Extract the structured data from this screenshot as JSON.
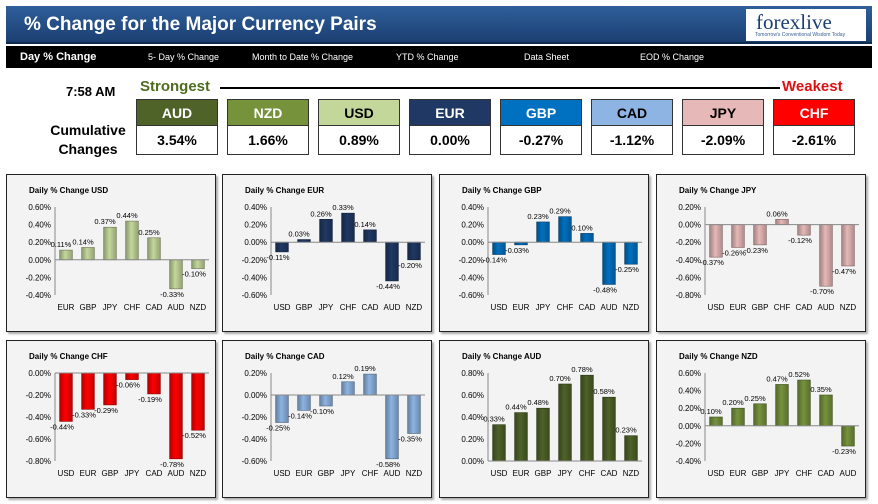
{
  "header": {
    "title": "% Change for the Major Currency Pairs",
    "logo_text": "forexlive",
    "logo_tagline": "Tomorrow's Conventional Wisdom Today"
  },
  "nav": [
    "Day % Change",
    "5- Day % Change",
    "Month to Date % Change",
    "YTD % Change",
    "Data Sheet",
    "EOD % Change"
  ],
  "time": "7:58 AM",
  "strongest_label": "Strongest",
  "weakest_label": "Weakest",
  "cumulative_label": "Cumulative Changes",
  "tiles": [
    {
      "ccy": "AUD",
      "value": "3.54%",
      "head_bg": "#4f6228",
      "head_fg": "#ffffff"
    },
    {
      "ccy": "NZD",
      "value": "1.66%",
      "head_bg": "#76933c",
      "head_fg": "#ffffff"
    },
    {
      "ccy": "USD",
      "value": "0.89%",
      "head_bg": "#c4d79b",
      "head_fg": "#000000"
    },
    {
      "ccy": "EUR",
      "value": "0.00%",
      "head_bg": "#1f3864",
      "head_fg": "#ffffff"
    },
    {
      "ccy": "GBP",
      "value": "-0.27%",
      "head_bg": "#0070c0",
      "head_fg": "#ffffff"
    },
    {
      "ccy": "CAD",
      "value": "-1.12%",
      "head_bg": "#8db4e2",
      "head_fg": "#000000"
    },
    {
      "ccy": "JPY",
      "value": "-2.09%",
      "head_bg": "#e6b8b7",
      "head_fg": "#000000"
    },
    {
      "ccy": "CHF",
      "value": "-2.61%",
      "head_bg": "#ff0000",
      "head_fg": "#ffffff"
    }
  ],
  "chart_data": [
    {
      "type": "bar",
      "title": "Daily % Change USD",
      "color": "#c4d79b",
      "categories": [
        "EUR",
        "GBP",
        "JPY",
        "CHF",
        "CAD",
        "AUD",
        "NZD"
      ],
      "values": [
        0.11,
        0.14,
        0.37,
        0.44,
        0.25,
        -0.33,
        -0.1
      ],
      "labels": [
        "0.11%",
        "0.14%",
        "0.37%",
        "0.44%",
        "0.25%",
        "-0.33%",
        "-0.10%"
      ],
      "yticks": [
        "0.60%",
        "0.40%",
        "0.20%",
        "0.00%",
        "-0.20%",
        "-0.40%"
      ],
      "ylim": [
        -0.4,
        0.6
      ]
    },
    {
      "type": "bar",
      "title": "Daily % Change EUR",
      "color": "#1f3864",
      "categories": [
        "USD",
        "GBP",
        "JPY",
        "CHF",
        "CAD",
        "AUD",
        "NZD"
      ],
      "values": [
        -0.11,
        0.03,
        0.26,
        0.33,
        0.14,
        -0.44,
        -0.2
      ],
      "labels": [
        "-0.11%",
        "0.03%",
        "0.26%",
        "0.33%",
        "0.14%",
        "-0.44%",
        "-0.20%"
      ],
      "yticks": [
        "0.40%",
        "0.20%",
        "0.00%",
        "-0.20%",
        "-0.40%",
        "-0.60%"
      ],
      "ylim": [
        -0.6,
        0.4
      ]
    },
    {
      "type": "bar",
      "title": "Daily % Change GBP",
      "color": "#0070c0",
      "categories": [
        "USD",
        "EUR",
        "JPY",
        "CHF",
        "CAD",
        "AUD",
        "NZD"
      ],
      "values": [
        -0.14,
        -0.03,
        0.23,
        0.29,
        0.1,
        -0.48,
        -0.25
      ],
      "labels": [
        "-0.14%",
        "-0.03%",
        "0.23%",
        "0.29%",
        "0.10%",
        "-0.48%",
        "-0.25%"
      ],
      "yticks": [
        "0.40%",
        "0.20%",
        "0.00%",
        "-0.20%",
        "-0.40%",
        "-0.60%"
      ],
      "ylim": [
        -0.6,
        0.4
      ]
    },
    {
      "type": "bar",
      "title": "Daily % Change JPY",
      "color": "#e6b8b7",
      "categories": [
        "USD",
        "EUR",
        "GBP",
        "CHF",
        "CAD",
        "AUD",
        "NZD"
      ],
      "values": [
        -0.37,
        -0.26,
        -0.23,
        0.06,
        -0.12,
        -0.7,
        -0.47
      ],
      "labels": [
        "-0.37%",
        "-0.26%",
        "-0.23%",
        "0.06%",
        "-0.12%",
        "-0.70%",
        "-0.47%"
      ],
      "yticks": [
        "0.20%",
        "0.00%",
        "-0.20%",
        "-0.40%",
        "-0.60%",
        "-0.80%"
      ],
      "ylim": [
        -0.8,
        0.2
      ]
    },
    {
      "type": "bar",
      "title": "Daily % Change CHF",
      "color": "#ff0000",
      "categories": [
        "USD",
        "EUR",
        "GBP",
        "JPY",
        "CAD",
        "AUD",
        "NZD"
      ],
      "values": [
        -0.44,
        -0.33,
        -0.29,
        -0.06,
        -0.19,
        -0.78,
        -0.52
      ],
      "labels": [
        "-0.44%",
        "-0.33%",
        "-0.29%",
        "-0.06%",
        "-0.19%",
        "-0.78%",
        "-0.52%"
      ],
      "yticks": [
        "0.00%",
        "-0.20%",
        "-0.40%",
        "-0.60%",
        "-0.80%"
      ],
      "ylim": [
        -0.8,
        0.0
      ]
    },
    {
      "type": "bar",
      "title": "Daily % Change CAD",
      "color": "#8db4e2",
      "categories": [
        "USD",
        "EUR",
        "GBP",
        "JPY",
        "CHF",
        "AUD",
        "NZD"
      ],
      "values": [
        -0.25,
        -0.14,
        -0.1,
        0.12,
        0.19,
        -0.58,
        -0.35
      ],
      "labels": [
        "-0.25%",
        "-0.14%",
        "-0.10%",
        "0.12%",
        "0.19%",
        "-0.58%",
        "-0.35%"
      ],
      "yticks": [
        "0.20%",
        "0.00%",
        "-0.20%",
        "-0.40%",
        "-0.60%"
      ],
      "ylim": [
        -0.6,
        0.2
      ]
    },
    {
      "type": "bar",
      "title": "Daily % Change AUD",
      "color": "#4f6228",
      "categories": [
        "USD",
        "EUR",
        "GBP",
        "JPY",
        "CHF",
        "CAD",
        "NZD"
      ],
      "values": [
        0.33,
        0.44,
        0.48,
        0.7,
        0.78,
        0.58,
        0.23
      ],
      "labels": [
        "0.33%",
        "0.44%",
        "0.48%",
        "0.70%",
        "0.78%",
        "0.58%",
        "0.23%"
      ],
      "yticks": [
        "0.80%",
        "0.60%",
        "0.40%",
        "0.20%",
        "0.00%"
      ],
      "ylim": [
        0.0,
        0.8
      ]
    },
    {
      "type": "bar",
      "title": "Daily % Change NZD",
      "color": "#76933c",
      "categories": [
        "USD",
        "EUR",
        "GBP",
        "JPY",
        "CHF",
        "CAD",
        "AUD"
      ],
      "values": [
        0.1,
        0.2,
        0.25,
        0.47,
        0.52,
        0.35,
        -0.23
      ],
      "labels": [
        "0.10%",
        "0.20%",
        "0.25%",
        "0.47%",
        "0.52%",
        "0.35%",
        "-0.23%"
      ],
      "yticks": [
        "0.60%",
        "0.40%",
        "0.20%",
        "0.00%",
        "-0.20%",
        "-0.40%"
      ],
      "ylim": [
        -0.4,
        0.6
      ]
    }
  ]
}
